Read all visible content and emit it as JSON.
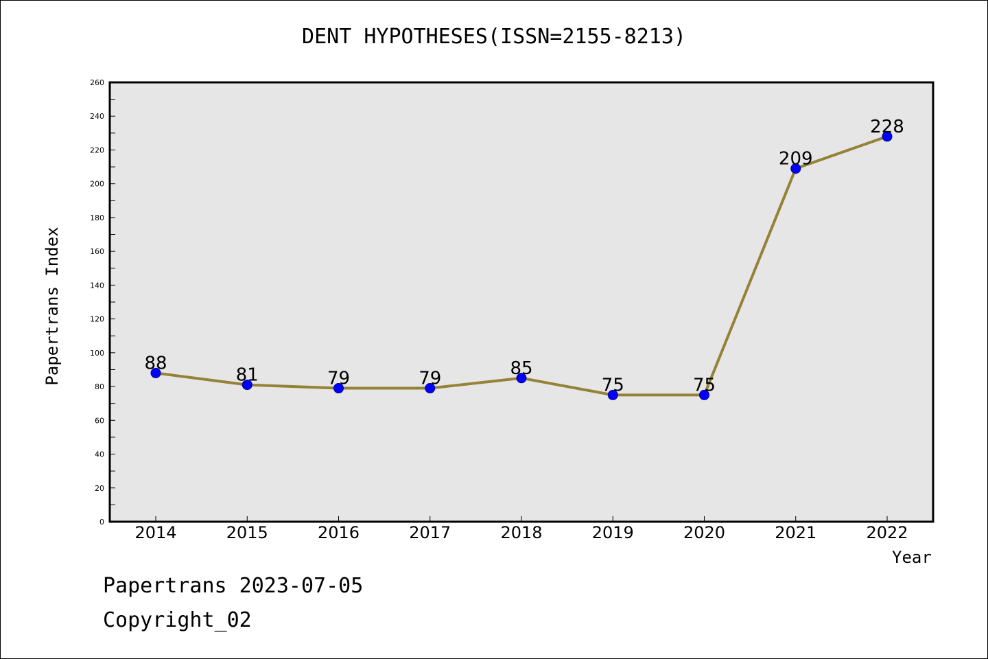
{
  "chart_data": {
    "type": "line",
    "title": "DENT HYPOTHESES(ISSN=2155-8213)",
    "xlabel": "Year",
    "ylabel": "Papertrans Index",
    "categories": [
      "2014",
      "2015",
      "2016",
      "2017",
      "2018",
      "2019",
      "2020",
      "2021",
      "2022"
    ],
    "series": [
      {
        "values": [
          88,
          81,
          79,
          79,
          85,
          75,
          75,
          209,
          228
        ]
      }
    ],
    "ylim": [
      0,
      260
    ],
    "yticks": [
      0,
      20,
      40,
      60,
      80,
      100,
      120,
      140,
      160,
      180,
      200,
      220,
      240,
      260
    ],
    "data_labels": true,
    "grid": false,
    "colors": {
      "line": "#948236",
      "marker": "#0000ff",
      "plot_bg": "#e6e6e6"
    }
  },
  "footer": {
    "line1": "Papertrans 2023-07-05",
    "line2": "Copyright_02"
  }
}
